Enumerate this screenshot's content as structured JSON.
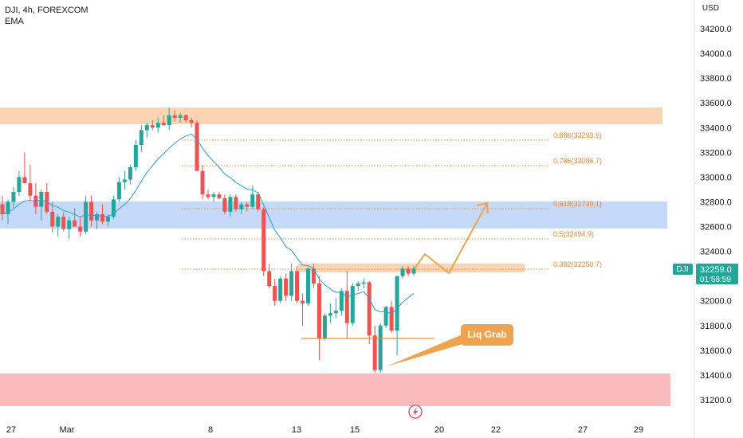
{
  "header": {
    "title": "DJI, 4h, FOREXCOM",
    "indicator": "EMA"
  },
  "axis": {
    "currency": "USD",
    "price_ticks": [
      "34200.0",
      "34000.0",
      "33800.0",
      "33600.0",
      "33400.0",
      "33200.0",
      "33000.0",
      "32800.0",
      "32600.0",
      "32400.0",
      "32200.0",
      "32000.0",
      "31800.0",
      "31600.0",
      "31400.0",
      "31200.0"
    ],
    "date_ticks": [
      "27",
      "Mar",
      "8",
      "13",
      "15",
      "20",
      "22",
      "27",
      "29"
    ]
  },
  "fib": [
    {
      "label": "0.886(33293.6)",
      "price": 33293.6
    },
    {
      "label": "0.786(33086.7)",
      "price": 33086.7
    },
    {
      "label": "0.618(32739.1)",
      "price": 32739.1
    },
    {
      "label": "0.5(32494.9)",
      "price": 32494.9
    },
    {
      "label": "0.382(32250.7)",
      "price": 32250.7
    }
  ],
  "price_tag": {
    "symbol": "DJI",
    "last": "32259.0",
    "countdown": "01:58:59"
  },
  "annotations": {
    "liq_grab": "Liq Grab"
  },
  "colors": {
    "up": "#26a69a",
    "down": "#ef5350",
    "ema": "#2f9be0",
    "accent": "#f0a34e"
  },
  "chart_data": {
    "type": "candlestick",
    "title": "DJI, 4h, FOREXCOM",
    "ylabel": "USD",
    "ylim": [
      31100,
      34350
    ],
    "indicator": "EMA",
    "candles": [
      [
        32780,
        32850,
        32650,
        32700
      ],
      [
        32700,
        32820,
        32620,
        32800
      ],
      [
        32800,
        32920,
        32750,
        32880
      ],
      [
        32880,
        33050,
        32850,
        33000
      ],
      [
        33000,
        33200,
        32950,
        32950
      ],
      [
        32950,
        33100,
        32800,
        32850
      ],
      [
        32850,
        32950,
        32700,
        32760
      ],
      [
        32760,
        32900,
        32650,
        32880
      ],
      [
        32880,
        32950,
        32700,
        32720
      ],
      [
        32720,
        32800,
        32550,
        32600
      ],
      [
        32600,
        32700,
        32520,
        32680
      ],
      [
        32680,
        32720,
        32560,
        32580
      ],
      [
        32580,
        32680,
        32500,
        32650
      ],
      [
        32650,
        32750,
        32600,
        32600
      ],
      [
        32600,
        32680,
        32520,
        32560
      ],
      [
        32560,
        32850,
        32540,
        32800
      ],
      [
        32800,
        32850,
        32600,
        32650
      ],
      [
        32650,
        32720,
        32580,
        32700
      ],
      [
        32700,
        32780,
        32620,
        32640
      ],
      [
        32640,
        32700,
        32600,
        32680
      ],
      [
        32680,
        32850,
        32660,
        32820
      ],
      [
        32820,
        33000,
        32800,
        32960
      ],
      [
        32960,
        33050,
        32900,
        32980
      ],
      [
        32980,
        33100,
        32940,
        33080
      ],
      [
        33080,
        33300,
        33050,
        33260
      ],
      [
        33260,
        33420,
        33200,
        33380
      ],
      [
        33380,
        33440,
        33320,
        33420
      ],
      [
        33420,
        33460,
        33380,
        33400
      ],
      [
        33400,
        33480,
        33360,
        33440
      ],
      [
        33440,
        33500,
        33420,
        33420
      ],
      [
        33420,
        33560,
        33380,
        33500
      ],
      [
        33500,
        33540,
        33450,
        33480
      ],
      [
        33480,
        33520,
        33440,
        33500
      ],
      [
        33500,
        33510,
        33440,
        33460
      ],
      [
        33460,
        33480,
        33400,
        33440
      ],
      [
        33440,
        33460,
        33050,
        33050
      ],
      [
        33050,
        33100,
        32820,
        32860
      ],
      [
        32860,
        32900,
        32820,
        32840
      ],
      [
        32840,
        32880,
        32800,
        32860
      ],
      [
        32860,
        32880,
        32820,
        32830
      ],
      [
        32830,
        32860,
        32700,
        32720
      ],
      [
        32720,
        32860,
        32680,
        32840
      ],
      [
        32840,
        32860,
        32720,
        32740
      ],
      [
        32740,
        32800,
        32700,
        32780
      ],
      [
        32780,
        32800,
        32720,
        32760
      ],
      [
        32760,
        32930,
        32740,
        32860
      ],
      [
        32860,
        32880,
        32720,
        32740
      ],
      [
        32740,
        32760,
        32200,
        32240
      ],
      [
        32240,
        32300,
        32100,
        32120
      ],
      [
        32120,
        32180,
        31960,
        32000
      ],
      [
        32000,
        32200,
        31980,
        32180
      ],
      [
        32180,
        32220,
        32000,
        32040
      ],
      [
        32040,
        32300,
        32000,
        32240
      ],
      [
        32240,
        32280,
        31980,
        32000
      ],
      [
        32000,
        32060,
        31800,
        31980
      ],
      [
        31980,
        32270,
        31960,
        32260
      ],
      [
        32260,
        32300,
        32100,
        32140
      ],
      [
        32140,
        32200,
        31520,
        31700
      ],
      [
        31700,
        31900,
        31680,
        31880
      ],
      [
        31880,
        31980,
        31820,
        31900
      ],
      [
        31900,
        32020,
        31860,
        31920
      ],
      [
        31920,
        32100,
        31880,
        32080
      ],
      [
        32080,
        32240,
        31700,
        31820
      ],
      [
        31820,
        32140,
        31800,
        32120
      ],
      [
        32120,
        32160,
        32080,
        32140
      ],
      [
        32140,
        32180,
        32100,
        32150
      ],
      [
        32150,
        32160,
        31650,
        31720
      ],
      [
        31720,
        31800,
        31420,
        31440
      ],
      [
        31440,
        31820,
        31420,
        31800
      ],
      [
        31800,
        31960,
        31780,
        31950
      ],
      [
        31950,
        32000,
        31740,
        31760
      ],
      [
        31760,
        32200,
        31560,
        32200
      ],
      [
        32200,
        32280,
        32180,
        32260
      ],
      [
        32260,
        32280,
        32200,
        32220
      ],
      [
        32220,
        32280,
        32200,
        32260
      ]
    ]
  }
}
